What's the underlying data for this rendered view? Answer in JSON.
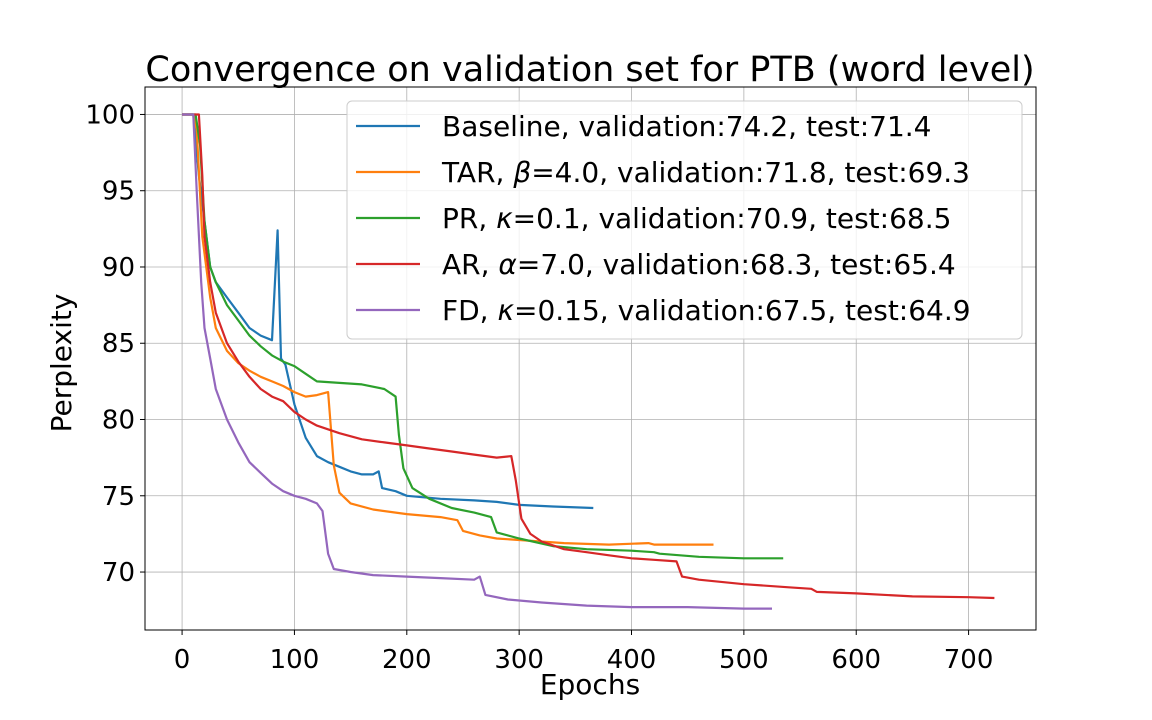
{
  "chart_data": {
    "type": "line",
    "title": "Convergence on validation set for PTB (word level)",
    "xlabel": "Epochs",
    "ylabel": "Perplexity",
    "xlim": [
      -33,
      760
    ],
    "ylim": [
      66.2,
      101.8
    ],
    "xticks": [
      0,
      100,
      200,
      300,
      400,
      500,
      600,
      700
    ],
    "yticks": [
      70,
      75,
      80,
      85,
      90,
      95,
      100
    ],
    "grid": true,
    "legend_position": "top-right",
    "series": [
      {
        "name": "Baseline",
        "legend_parts": [
          "Baseline, validation:74.2, test:71.4"
        ],
        "color": "#1f77b4",
        "points": [
          [
            0,
            100
          ],
          [
            10,
            100
          ],
          [
            15,
            96
          ],
          [
            20,
            93
          ],
          [
            25,
            90
          ],
          [
            30,
            89
          ],
          [
            40,
            88
          ],
          [
            50,
            87
          ],
          [
            60,
            86
          ],
          [
            70,
            85.5
          ],
          [
            80,
            85.2
          ],
          [
            85,
            92.4
          ],
          [
            88,
            84
          ],
          [
            92,
            83.6
          ],
          [
            100,
            81
          ],
          [
            110,
            78.8
          ],
          [
            120,
            77.6
          ],
          [
            130,
            77.2
          ],
          [
            140,
            76.9
          ],
          [
            150,
            76.6
          ],
          [
            160,
            76.4
          ],
          [
            170,
            76.4
          ],
          [
            175,
            76.6
          ],
          [
            178,
            75.5
          ],
          [
            190,
            75.3
          ],
          [
            200,
            75
          ],
          [
            230,
            74.8
          ],
          [
            260,
            74.7
          ],
          [
            280,
            74.6
          ],
          [
            300,
            74.4
          ],
          [
            330,
            74.3
          ],
          [
            366,
            74.2
          ]
        ]
      },
      {
        "name": "TAR",
        "legend_parts": [
          "TAR, ",
          "β",
          "=4.0, validation:71.8, test:69.3"
        ],
        "color": "#ff7f0e",
        "points": [
          [
            0,
            100
          ],
          [
            10,
            100
          ],
          [
            13,
            99
          ],
          [
            18,
            92
          ],
          [
            25,
            88
          ],
          [
            30,
            86
          ],
          [
            40,
            84.5
          ],
          [
            50,
            83.7
          ],
          [
            60,
            83.2
          ],
          [
            70,
            82.8
          ],
          [
            80,
            82.5
          ],
          [
            90,
            82.2
          ],
          [
            100,
            81.8
          ],
          [
            110,
            81.5
          ],
          [
            120,
            81.6
          ],
          [
            130,
            81.8
          ],
          [
            135,
            77
          ],
          [
            140,
            75.2
          ],
          [
            150,
            74.5
          ],
          [
            170,
            74.1
          ],
          [
            200,
            73.8
          ],
          [
            230,
            73.6
          ],
          [
            245,
            73.4
          ],
          [
            250,
            72.7
          ],
          [
            265,
            72.4
          ],
          [
            280,
            72.2
          ],
          [
            300,
            72.1
          ],
          [
            340,
            71.9
          ],
          [
            380,
            71.8
          ],
          [
            415,
            71.9
          ],
          [
            420,
            71.8
          ],
          [
            473,
            71.8
          ]
        ]
      },
      {
        "name": "PR",
        "legend_parts": [
          "PR, ",
          "κ",
          "=0.1, validation:70.9, test:68.5"
        ],
        "color": "#2ca02c",
        "points": [
          [
            0,
            100
          ],
          [
            12,
            100
          ],
          [
            16,
            98
          ],
          [
            20,
            93
          ],
          [
            25,
            90
          ],
          [
            30,
            89
          ],
          [
            40,
            87.5
          ],
          [
            50,
            86.5
          ],
          [
            60,
            85.5
          ],
          [
            70,
            84.8
          ],
          [
            80,
            84.2
          ],
          [
            90,
            83.8
          ],
          [
            100,
            83.5
          ],
          [
            110,
            83
          ],
          [
            120,
            82.5
          ],
          [
            140,
            82.4
          ],
          [
            160,
            82.3
          ],
          [
            180,
            82
          ],
          [
            190,
            81.5
          ],
          [
            193,
            79
          ],
          [
            197,
            76.8
          ],
          [
            205,
            75.5
          ],
          [
            220,
            74.8
          ],
          [
            240,
            74.2
          ],
          [
            260,
            73.9
          ],
          [
            275,
            73.6
          ],
          [
            280,
            72.6
          ],
          [
            300,
            72.2
          ],
          [
            330,
            71.7
          ],
          [
            360,
            71.5
          ],
          [
            400,
            71.4
          ],
          [
            420,
            71.3
          ],
          [
            425,
            71.2
          ],
          [
            460,
            71
          ],
          [
            500,
            70.9
          ],
          [
            535,
            70.9
          ]
        ]
      },
      {
        "name": "AR",
        "legend_parts": [
          "AR, ",
          "α",
          "=7.0, validation:68.3, test:65.4"
        ],
        "color": "#d62728",
        "points": [
          [
            0,
            100
          ],
          [
            15,
            100
          ],
          [
            18,
            96
          ],
          [
            20,
            92
          ],
          [
            25,
            89
          ],
          [
            30,
            87
          ],
          [
            40,
            85
          ],
          [
            50,
            83.8
          ],
          [
            60,
            82.8
          ],
          [
            70,
            82
          ],
          [
            80,
            81.5
          ],
          [
            90,
            81.2
          ],
          [
            100,
            80.5
          ],
          [
            110,
            80
          ],
          [
            120,
            79.6
          ],
          [
            140,
            79.1
          ],
          [
            160,
            78.7
          ],
          [
            180,
            78.5
          ],
          [
            200,
            78.3
          ],
          [
            220,
            78.1
          ],
          [
            240,
            77.9
          ],
          [
            260,
            77.7
          ],
          [
            280,
            77.5
          ],
          [
            293,
            77.6
          ],
          [
            297,
            76
          ],
          [
            302,
            73.5
          ],
          [
            310,
            72.5
          ],
          [
            320,
            72
          ],
          [
            340,
            71.5
          ],
          [
            360,
            71.3
          ],
          [
            380,
            71.1
          ],
          [
            400,
            70.9
          ],
          [
            420,
            70.8
          ],
          [
            440,
            70.7
          ],
          [
            445,
            69.7
          ],
          [
            460,
            69.5
          ],
          [
            500,
            69.2
          ],
          [
            540,
            69
          ],
          [
            560,
            68.9
          ],
          [
            565,
            68.7
          ],
          [
            600,
            68.6
          ],
          [
            650,
            68.4
          ],
          [
            700,
            68.35
          ],
          [
            723,
            68.3
          ]
        ]
      },
      {
        "name": "FD",
        "legend_parts": [
          "FD, ",
          "κ",
          "=0.15, validation:67.5, test:64.9"
        ],
        "color": "#9467bd",
        "points": [
          [
            0,
            100
          ],
          [
            10,
            100
          ],
          [
            13,
            95
          ],
          [
            17,
            89
          ],
          [
            20,
            86
          ],
          [
            25,
            84
          ],
          [
            30,
            82
          ],
          [
            40,
            80
          ],
          [
            50,
            78.5
          ],
          [
            60,
            77.2
          ],
          [
            70,
            76.5
          ],
          [
            80,
            75.8
          ],
          [
            90,
            75.3
          ],
          [
            100,
            75
          ],
          [
            110,
            74.8
          ],
          [
            120,
            74.5
          ],
          [
            125,
            74
          ],
          [
            130,
            71.2
          ],
          [
            135,
            70.2
          ],
          [
            150,
            70
          ],
          [
            170,
            69.8
          ],
          [
            200,
            69.7
          ],
          [
            230,
            69.6
          ],
          [
            260,
            69.5
          ],
          [
            265,
            69.7
          ],
          [
            270,
            68.5
          ],
          [
            290,
            68.2
          ],
          [
            320,
            68
          ],
          [
            360,
            67.8
          ],
          [
            400,
            67.7
          ],
          [
            450,
            67.7
          ],
          [
            500,
            67.6
          ],
          [
            525,
            67.6
          ]
        ]
      }
    ]
  }
}
